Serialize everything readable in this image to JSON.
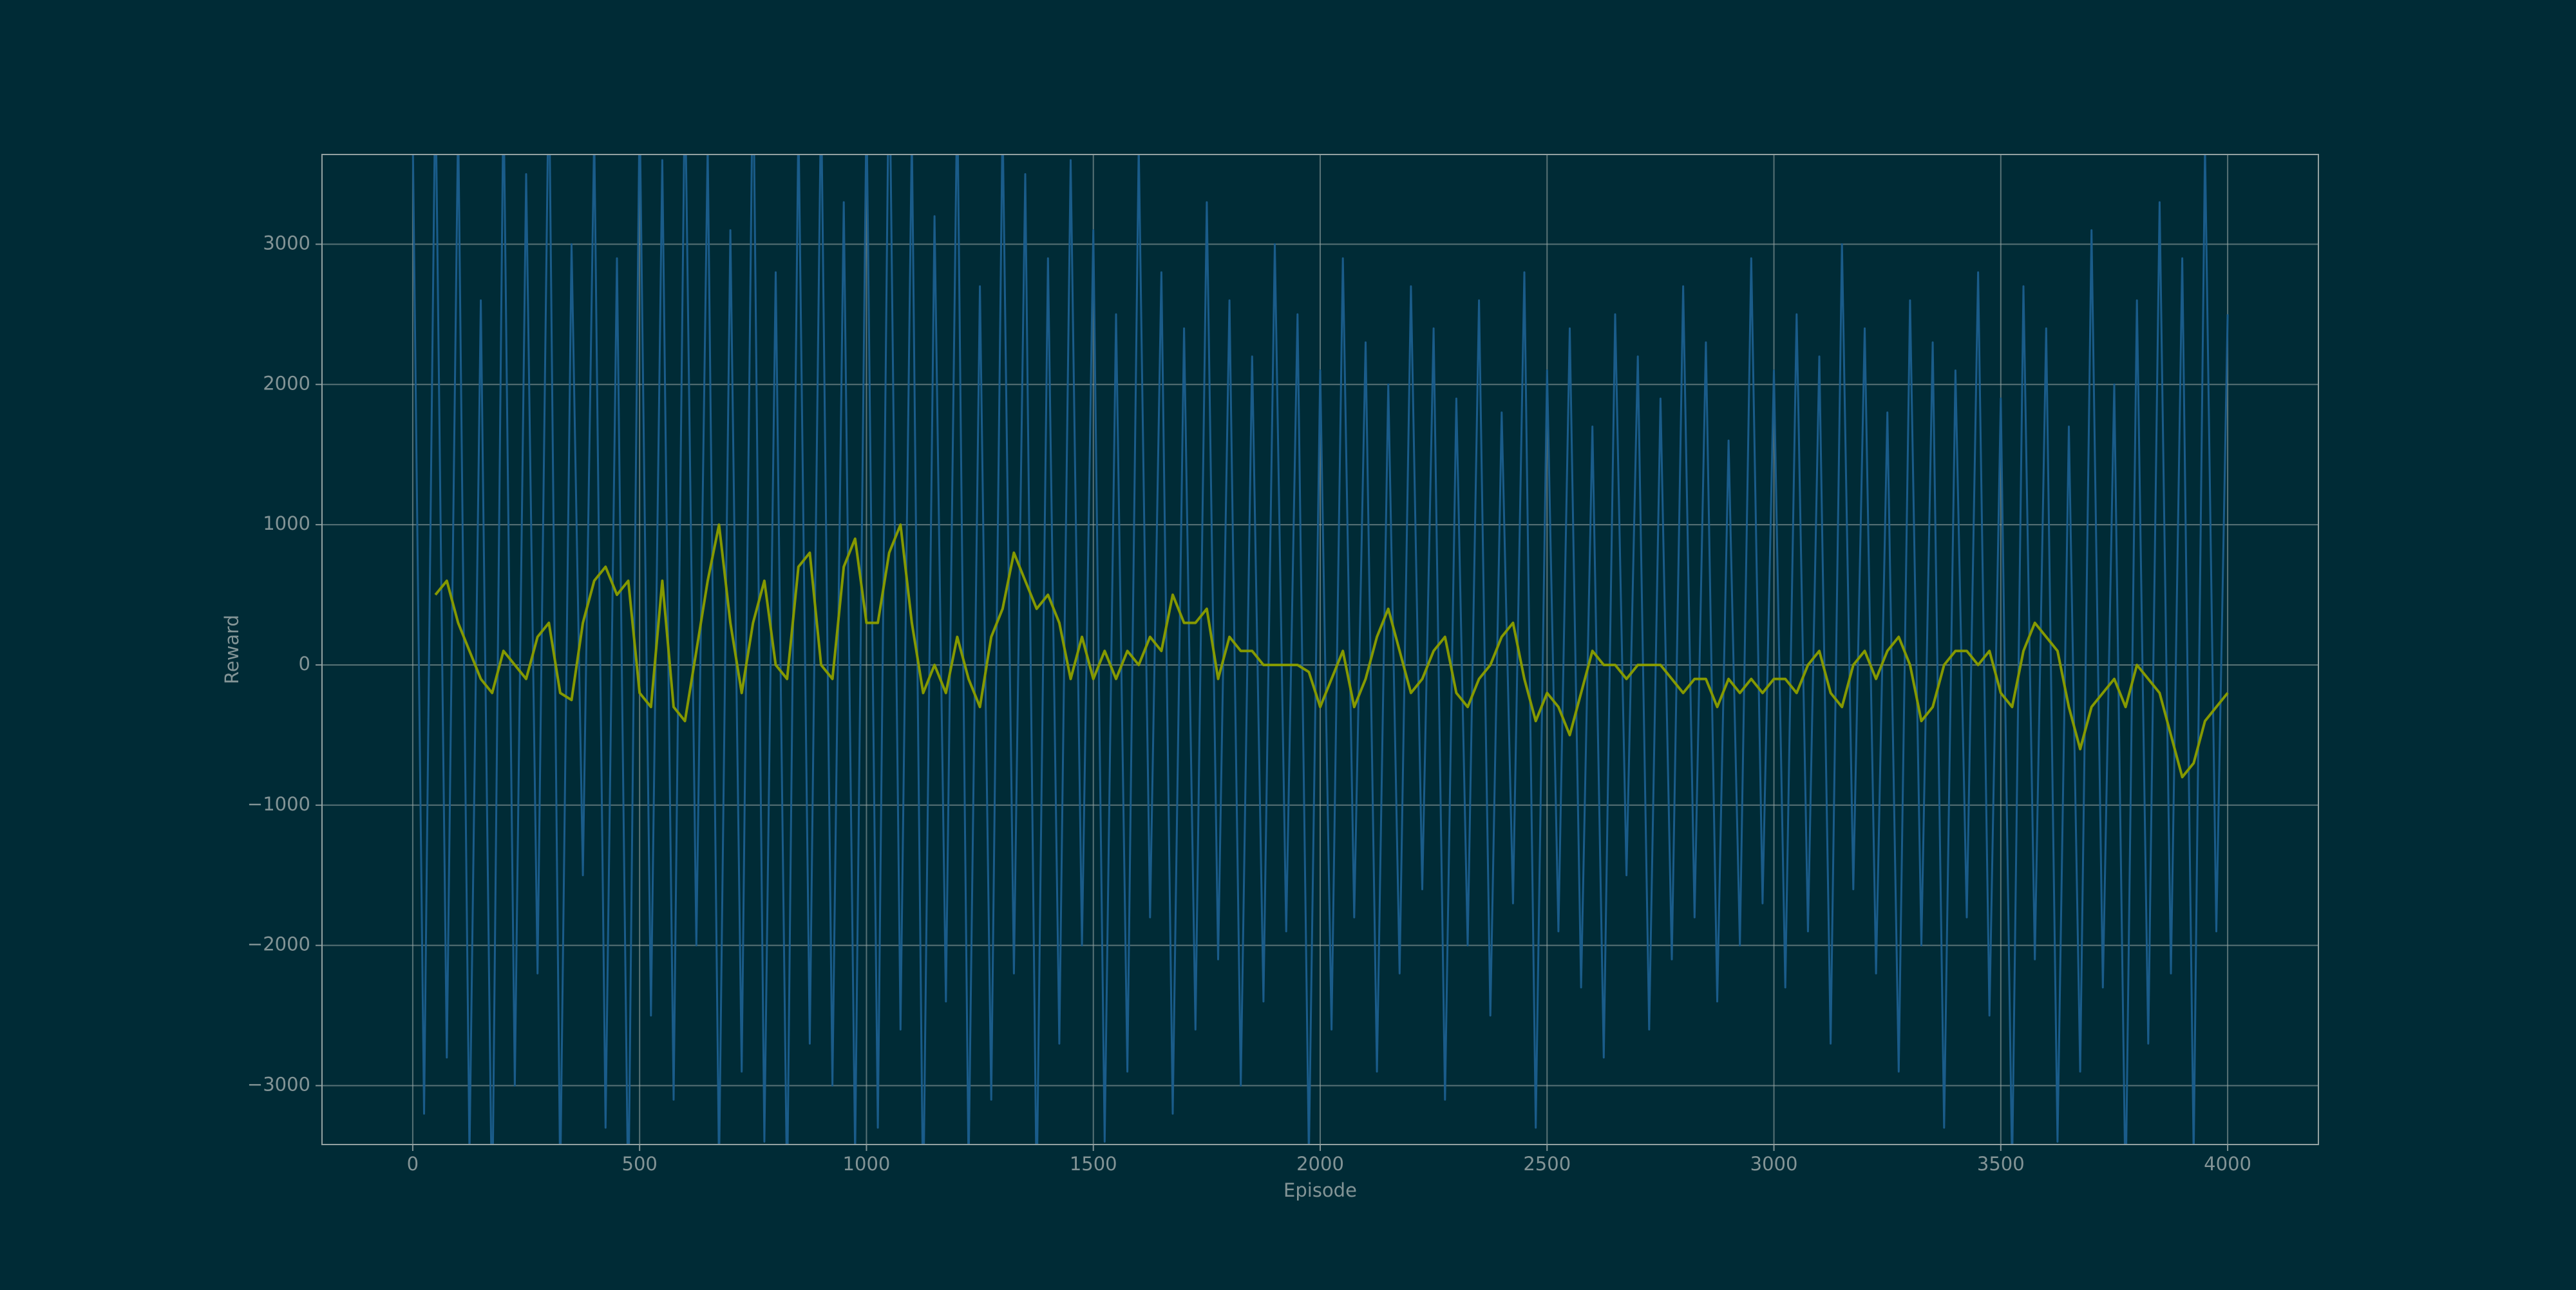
{
  "chart_data": {
    "type": "line",
    "xlabel": "Episode",
    "ylabel": "Reward",
    "xlim": [
      -200,
      4200
    ],
    "ylim": [
      -3420,
      3640
    ],
    "xticks": [
      0,
      500,
      1000,
      1500,
      2000,
      2500,
      3000,
      3500,
      4000
    ],
    "yticks": [
      {
        "value": -3000,
        "label": "−3000"
      },
      {
        "value": -2000,
        "label": "−2000"
      },
      {
        "value": -1000,
        "label": "−1000"
      },
      0,
      1000,
      2000,
      3000
    ],
    "grid": true,
    "x": [
      0,
      25,
      50,
      75,
      100,
      125,
      150,
      175,
      200,
      225,
      250,
      275,
      300,
      325,
      350,
      375,
      400,
      425,
      450,
      475,
      500,
      525,
      550,
      575,
      600,
      625,
      650,
      675,
      700,
      725,
      750,
      775,
      800,
      825,
      850,
      875,
      900,
      925,
      950,
      975,
      1000,
      1025,
      1050,
      1075,
      1100,
      1125,
      1150,
      1175,
      1200,
      1225,
      1250,
      1275,
      1300,
      1325,
      1350,
      1375,
      1400,
      1425,
      1450,
      1475,
      1500,
      1525,
      1550,
      1575,
      1600,
      1625,
      1650,
      1675,
      1700,
      1725,
      1750,
      1775,
      1800,
      1825,
      1850,
      1875,
      1900,
      1925,
      1950,
      1975,
      2000,
      2025,
      2050,
      2075,
      2100,
      2125,
      2150,
      2175,
      2200,
      2225,
      2250,
      2275,
      2300,
      2325,
      2350,
      2375,
      2400,
      2425,
      2450,
      2475,
      2500,
      2525,
      2550,
      2575,
      2600,
      2625,
      2650,
      2675,
      2700,
      2725,
      2750,
      2775,
      2800,
      2825,
      2850,
      2875,
      2900,
      2925,
      2950,
      2975,
      3000,
      3025,
      3050,
      3075,
      3100,
      3125,
      3150,
      3175,
      3200,
      3225,
      3250,
      3275,
      3300,
      3325,
      3350,
      3375,
      3400,
      3425,
      3450,
      3475,
      3500,
      3525,
      3550,
      3575,
      3600,
      3625,
      3650,
      3675,
      3700,
      3725,
      3750,
      3775,
      3800,
      3825,
      3850,
      3875,
      3900,
      3925,
      3950,
      3975,
      4000
    ],
    "series": [
      {
        "color": "#1a5c8a",
        "values": [
          3800,
          -3200,
          4200,
          -2800,
          3900,
          -3500,
          2600,
          -4000,
          4100,
          -3000,
          3500,
          -2200,
          4300,
          -3700,
          3000,
          -1500,
          3800,
          -3300,
          2900,
          -3900,
          4000,
          -2500,
          3600,
          -3100,
          4200,
          -2000,
          3700,
          -3600,
          3100,
          -2900,
          4400,
          -3400,
          2800,
          -3800,
          3900,
          -2700,
          4100,
          -3000,
          3300,
          -3500,
          4000,
          -3300,
          4500,
          -2600,
          3800,
          -3900,
          3200,
          -2400,
          4100,
          -3600,
          2700,
          -3100,
          3900,
          -2200,
          3500,
          -3800,
          2900,
          -2700,
          3600,
          -2000,
          3100,
          -3400,
          2500,
          -2900,
          3700,
          -1800,
          2800,
          -3200,
          2400,
          -2600,
          3300,
          -2100,
          2600,
          -3000,
          2200,
          -2400,
          3000,
          -1900,
          2500,
          -3500,
          2100,
          -2600,
          2900,
          -1800,
          2300,
          -2900,
          2000,
          -2200,
          2700,
          -1600,
          2400,
          -3100,
          1900,
          -2000,
          2600,
          -2500,
          1800,
          -1700,
          2800,
          -3300,
          2100,
          -1900,
          2400,
          -2300,
          1700,
          -2800,
          2500,
          -1500,
          2200,
          -2600,
          1900,
          -2100,
          2700,
          -1800,
          2300,
          -2400,
          1600,
          -2000,
          2900,
          -1700,
          2100,
          -2300,
          2500,
          -1900,
          2200,
          -2700,
          3000,
          -1600,
          2400,
          -2200,
          1800,
          -2900,
          2600,
          -2000,
          2300,
          -3300,
          2100,
          -1800,
          2800,
          -2500,
          1900,
          -3600,
          2700,
          -2100,
          2400,
          -3400,
          1700,
          -2900,
          3100,
          -2300,
          2000,
          -3800,
          2600,
          -2700,
          3300,
          -2200,
          2900,
          -3500,
          3700,
          -1900,
          2500
        ]
      },
      {
        "color": "#859900",
        "values": [
          null,
          null,
          500,
          600,
          300,
          100,
          -100,
          -200,
          100,
          0,
          -100,
          200,
          300,
          -200,
          -250,
          300,
          600,
          700,
          500,
          600,
          -200,
          -300,
          600,
          -300,
          -400,
          100,
          600,
          1000,
          300,
          -200,
          300,
          600,
          0,
          -100,
          700,
          800,
          0,
          -100,
          700,
          900,
          300,
          300,
          800,
          1000,
          300,
          -200,
          0,
          -200,
          200,
          -100,
          -300,
          200,
          400,
          800,
          600,
          400,
          500,
          300,
          -100,
          200,
          -100,
          100,
          -100,
          100,
          0,
          200,
          100,
          500,
          300,
          300,
          400,
          -100,
          200,
          100,
          100,
          0,
          0,
          0,
          0,
          -50,
          -300,
          -100,
          100,
          -300,
          -100,
          200,
          400,
          100,
          -200,
          -100,
          100,
          200,
          -200,
          -300,
          -100,
          0,
          200,
          300,
          -100,
          -400,
          -200,
          -300,
          -500,
          -200,
          100,
          0,
          0,
          -100,
          0,
          0,
          0,
          -100,
          -200,
          -100,
          -100,
          -300,
          -100,
          -200,
          -100,
          -200,
          -100,
          -100,
          -200,
          0,
          100,
          -200,
          -300,
          0,
          100,
          -100,
          100,
          200,
          0,
          -400,
          -300,
          0,
          100,
          100,
          0,
          100,
          -200,
          -300,
          100,
          300,
          200,
          100,
          -300,
          -600,
          -300,
          -200,
          -100,
          -300,
          0,
          -100,
          -200,
          -500,
          -800,
          -700,
          -400,
          -300,
          -200
        ]
      }
    ]
  }
}
